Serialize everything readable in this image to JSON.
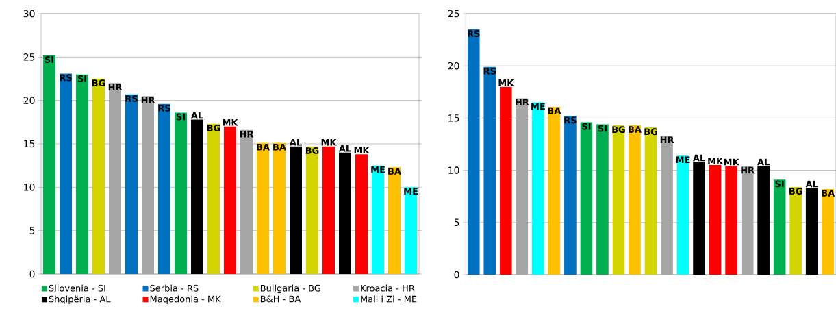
{
  "chart_data": [
    {
      "type": "bar",
      "categories": [
        null,
        null,
        null,
        null,
        null,
        null,
        null,
        null,
        null,
        null,
        null,
        null,
        null,
        null,
        null,
        null,
        null,
        null,
        null,
        null,
        null,
        null,
        null
      ],
      "ylim": [
        0,
        30
      ],
      "yticks": [
        0,
        5,
        10,
        15,
        20,
        25,
        30
      ],
      "grid": "y",
      "legend": "bottom",
      "tick_labels": "y",
      "series": [
        {
          "name": "Sllovenia - SI",
          "color": "#00b050",
          "values": [
            25.2,
            null,
            23.0,
            null,
            null,
            null,
            null,
            null,
            18.6,
            null,
            null,
            null,
            null,
            null,
            null,
            null,
            null,
            null,
            null,
            null,
            null,
            null,
            null
          ],
          "value_labels": [
            "SI",
            null,
            "SI",
            null,
            null,
            null,
            null,
            null,
            "SI",
            null,
            null,
            null,
            null,
            null,
            null,
            null,
            null,
            null,
            null,
            null,
            null,
            null,
            null
          ]
        },
        {
          "name": "Serbia - RS",
          "color": "#0070c0",
          "values": [
            null,
            23.1,
            null,
            null,
            null,
            20.7,
            null,
            19.6,
            null,
            null,
            null,
            null,
            null,
            null,
            null,
            null,
            null,
            null,
            null,
            null,
            null,
            null,
            null
          ],
          "value_labels": [
            null,
            "RS",
            null,
            null,
            null,
            "RS",
            null,
            "RS",
            null,
            null,
            null,
            null,
            null,
            null,
            null,
            null,
            null,
            null,
            null,
            null,
            null,
            null,
            null
          ]
        },
        {
          "name": "Bullgaria - BG",
          "color": "#d4d400",
          "values": [
            null,
            null,
            null,
            22.5,
            null,
            null,
            null,
            null,
            null,
            null,
            17.3,
            null,
            null,
            null,
            null,
            null,
            14.7,
            null,
            null,
            null,
            null,
            null,
            null
          ],
          "value_labels": [
            null,
            null,
            null,
            "BG",
            null,
            null,
            null,
            null,
            null,
            null,
            "BG",
            null,
            null,
            null,
            null,
            null,
            "BG",
            null,
            null,
            null,
            null,
            null,
            null
          ]
        },
        {
          "name": "Kroacia - HR",
          "color": "#a6a6a6",
          "values": [
            null,
            null,
            null,
            null,
            22.0,
            null,
            20.5,
            null,
            null,
            null,
            null,
            null,
            16.6,
            null,
            null,
            null,
            null,
            null,
            null,
            null,
            null,
            null,
            null
          ],
          "value_labels": [
            null,
            null,
            null,
            null,
            "HR",
            null,
            "HR",
            null,
            null,
            null,
            null,
            null,
            "HR",
            null,
            null,
            null,
            null,
            null,
            null,
            null,
            null,
            null,
            null
          ]
        },
        {
          "name": "Shqipëria - AL",
          "color": "#000000",
          "values": [
            null,
            null,
            null,
            null,
            null,
            null,
            null,
            null,
            null,
            17.8,
            null,
            null,
            null,
            null,
            null,
            14.7,
            null,
            null,
            14.0,
            null,
            null,
            null,
            null
          ],
          "value_labels": [
            null,
            null,
            null,
            null,
            null,
            null,
            null,
            null,
            null,
            "AL",
            null,
            null,
            null,
            null,
            null,
            "AL",
            null,
            null,
            "AL",
            null,
            null,
            null,
            null
          ]
        },
        {
          "name": "Maqedonia - MK",
          "color": "#ff0000",
          "values": [
            null,
            null,
            null,
            null,
            null,
            null,
            null,
            null,
            null,
            null,
            null,
            17.0,
            null,
            null,
            null,
            null,
            null,
            14.7,
            null,
            13.8,
            null,
            null,
            null
          ],
          "value_labels": [
            null,
            null,
            null,
            null,
            null,
            null,
            null,
            null,
            null,
            null,
            null,
            "MK",
            null,
            null,
            null,
            null,
            null,
            "MK",
            null,
            "MK",
            null,
            null,
            null
          ]
        },
        {
          "name": "B&H - BA",
          "color": "#ffc000",
          "values": [
            null,
            null,
            null,
            null,
            null,
            null,
            null,
            null,
            null,
            null,
            null,
            null,
            null,
            15.1,
            15.1,
            null,
            null,
            null,
            null,
            null,
            null,
            12.3,
            null
          ],
          "value_labels": [
            null,
            null,
            null,
            null,
            null,
            null,
            null,
            null,
            null,
            null,
            null,
            null,
            null,
            "BA",
            "BA",
            null,
            null,
            null,
            null,
            null,
            null,
            "BA",
            null
          ]
        },
        {
          "name": "Mali i Zi - ME",
          "color": "#00ffff",
          "values": [
            null,
            null,
            null,
            null,
            null,
            null,
            null,
            null,
            null,
            null,
            null,
            null,
            null,
            null,
            null,
            null,
            null,
            null,
            null,
            null,
            12.5,
            null,
            10.0
          ],
          "value_labels": [
            null,
            null,
            null,
            null,
            null,
            null,
            null,
            null,
            null,
            null,
            null,
            null,
            null,
            null,
            null,
            null,
            null,
            null,
            null,
            null,
            "ME",
            null,
            "ME"
          ]
        }
      ]
    },
    {
      "type": "bar",
      "categories": [
        null,
        null,
        null,
        null,
        null,
        null,
        null,
        null,
        null,
        null,
        null,
        null,
        null,
        null,
        null,
        null,
        null,
        null,
        null,
        null,
        null,
        null,
        null
      ],
      "ylim": [
        0,
        25
      ],
      "yticks": [
        0,
        5,
        10,
        15,
        20,
        25
      ],
      "grid": "y",
      "tick_labels": "y",
      "series": [
        {
          "color": "#00b050",
          "values": [
            null,
            null,
            null,
            null,
            null,
            null,
            null,
            14.6,
            14.4,
            null,
            null,
            null,
            null,
            null,
            null,
            null,
            null,
            null,
            null,
            9.1,
            null,
            null,
            null
          ],
          "value_labels": [
            null,
            null,
            null,
            null,
            null,
            null,
            null,
            "SI",
            "SI",
            null,
            null,
            null,
            null,
            null,
            null,
            null,
            null,
            null,
            null,
            "SI",
            null,
            null,
            null
          ]
        },
        {
          "color": "#0070c0",
          "values": [
            23.5,
            19.9,
            null,
            null,
            null,
            null,
            15.2,
            null,
            null,
            null,
            null,
            null,
            null,
            null,
            null,
            null,
            null,
            null,
            null,
            null,
            null,
            null,
            null
          ],
          "value_labels": [
            "RS",
            "RS",
            null,
            null,
            null,
            null,
            "RS",
            null,
            null,
            null,
            null,
            null,
            null,
            null,
            null,
            null,
            null,
            null,
            null,
            null,
            null,
            null,
            null
          ]
        },
        {
          "color": "#d4d400",
          "values": [
            null,
            null,
            null,
            null,
            null,
            null,
            null,
            null,
            null,
            14.3,
            null,
            14.1,
            null,
            null,
            null,
            null,
            null,
            null,
            null,
            null,
            8.4,
            null,
            null
          ],
          "value_labels": [
            null,
            null,
            null,
            null,
            null,
            null,
            null,
            null,
            null,
            "BG",
            null,
            "BG",
            null,
            null,
            null,
            null,
            null,
            null,
            null,
            null,
            "BG",
            null,
            null
          ]
        },
        {
          "color": "#a6a6a6",
          "values": [
            null,
            null,
            null,
            16.9,
            null,
            null,
            null,
            null,
            null,
            null,
            null,
            null,
            13.3,
            null,
            null,
            null,
            null,
            10.4,
            null,
            null,
            null,
            null,
            null
          ],
          "value_labels": [
            null,
            null,
            null,
            "HR",
            null,
            null,
            null,
            null,
            null,
            null,
            null,
            null,
            "HR",
            null,
            null,
            null,
            null,
            "HR",
            null,
            null,
            null,
            null,
            null
          ]
        },
        {
          "color": "#000000",
          "values": [
            null,
            null,
            null,
            null,
            null,
            null,
            null,
            null,
            null,
            null,
            null,
            null,
            null,
            null,
            10.8,
            null,
            null,
            null,
            10.4,
            null,
            null,
            8.3,
            null
          ],
          "value_labels": [
            null,
            null,
            null,
            null,
            null,
            null,
            null,
            null,
            null,
            null,
            null,
            null,
            null,
            null,
            "AL",
            null,
            null,
            null,
            "AL",
            null,
            null,
            "AL",
            null
          ]
        },
        {
          "color": "#ff0000",
          "values": [
            null,
            null,
            18.0,
            null,
            null,
            null,
            null,
            null,
            null,
            null,
            null,
            null,
            null,
            null,
            null,
            10.5,
            10.4,
            null,
            null,
            null,
            null,
            null,
            null
          ],
          "value_labels": [
            null,
            null,
            "MK",
            null,
            null,
            null,
            null,
            null,
            null,
            null,
            null,
            null,
            null,
            null,
            null,
            "MK",
            "MK",
            null,
            null,
            null,
            null,
            null,
            null
          ]
        },
        {
          "color": "#ffc000",
          "values": [
            null,
            null,
            null,
            null,
            null,
            16.1,
            null,
            null,
            null,
            null,
            14.3,
            null,
            null,
            null,
            null,
            null,
            null,
            null,
            null,
            null,
            null,
            null,
            8.2
          ],
          "value_labels": [
            null,
            null,
            null,
            null,
            null,
            "BA",
            null,
            null,
            null,
            null,
            "BA",
            null,
            null,
            null,
            null,
            null,
            null,
            null,
            null,
            null,
            null,
            null,
            "BA"
          ]
        },
        {
          "color": "#00ffff",
          "values": [
            null,
            null,
            null,
            null,
            16.5,
            null,
            null,
            null,
            null,
            null,
            null,
            null,
            null,
            11.4,
            null,
            null,
            null,
            null,
            null,
            null,
            null,
            null,
            null
          ],
          "value_labels": [
            null,
            null,
            null,
            null,
            "ME",
            null,
            null,
            null,
            null,
            null,
            null,
            null,
            null,
            "ME",
            null,
            null,
            null,
            null,
            null,
            null,
            null,
            null,
            null
          ]
        }
      ]
    }
  ]
}
